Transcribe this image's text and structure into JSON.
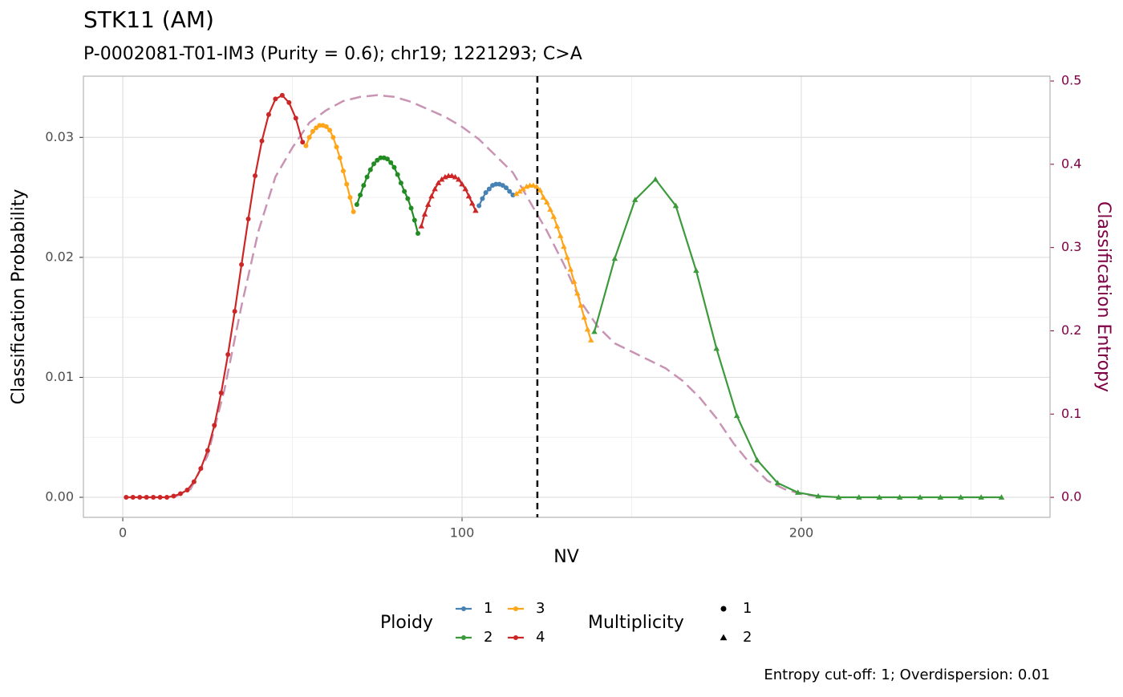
{
  "chart_data": {
    "type": "line",
    "title": "STK11 (AM)",
    "subtitle": "P-0002081-T01-IM3 (Purity = 0.6); chr19; 1221293; C>A",
    "x_label": "NV",
    "y_label": "Classification Probability",
    "y2_label": "Classification Entropy",
    "caption": "Entropy cut-off: 1; Overdispersion: 0.01",
    "xlim": [
      -11.6,
      273.3
    ],
    "ylim": [
      -0.00167,
      0.0351
    ],
    "y2lim": [
      -0.024,
      0.5058
    ],
    "xticks": [
      0,
      100,
      200
    ],
    "yticks": [
      {
        "value": 0,
        "label": "0.00"
      },
      0.01,
      0.02,
      0.03
    ],
    "y2ticks": [
      {
        "value": 0,
        "label": "0.0"
      },
      0.1,
      0.2,
      0.3,
      0.4,
      0.5
    ],
    "xminor": [
      50,
      150,
      250
    ],
    "yminor": [
      0.005,
      0.015,
      0.025
    ],
    "grid": true,
    "cutoff_x": 122.2,
    "series": [
      {
        "color": "#cd2626",
        "shape": "circle",
        "x": [
          1,
          3,
          5,
          7,
          9,
          11,
          13,
          15,
          17,
          19,
          21,
          23,
          25,
          27,
          29,
          31,
          33,
          35,
          37,
          39,
          41,
          43,
          45,
          47,
          49,
          51,
          53
        ],
        "values": [
          0,
          0,
          0,
          0,
          0,
          0,
          0,
          0.0001,
          0.0003,
          0.0006,
          0.0013,
          0.0024,
          0.0039,
          0.006,
          0.0087,
          0.0119,
          0.0155,
          0.0194,
          0.0232,
          0.0268,
          0.0297,
          0.0319,
          0.0332,
          0.0335,
          0.0329,
          0.0316,
          0.0296
        ]
      },
      {
        "color": "#ffa51a",
        "shape": "circle",
        "x": [
          54,
          55,
          56,
          57,
          58,
          59,
          60,
          61,
          62,
          63,
          64,
          65,
          66,
          67,
          68
        ],
        "values": [
          0.0293,
          0.03,
          0.0305,
          0.0308,
          0.031,
          0.031,
          0.0309,
          0.0306,
          0.03,
          0.0292,
          0.0283,
          0.0272,
          0.0261,
          0.025,
          0.0238
        ]
      },
      {
        "color": "#228b22",
        "shape": "circle",
        "x": [
          69,
          70,
          71,
          72,
          73,
          74,
          75,
          76,
          77,
          78,
          79,
          80,
          81,
          82,
          83,
          84,
          85,
          86,
          87
        ],
        "values": [
          0.0244,
          0.0252,
          0.026,
          0.0267,
          0.0273,
          0.0278,
          0.0281,
          0.0283,
          0.0283,
          0.0282,
          0.0279,
          0.0275,
          0.0269,
          0.0262,
          0.0255,
          0.0249,
          0.0241,
          0.0231,
          0.022
        ]
      },
      {
        "color": "#cd2626",
        "shape": "triangle",
        "x": [
          88,
          89,
          90,
          91,
          92,
          93,
          94,
          95,
          96,
          97,
          98,
          99,
          100,
          101,
          102,
          103,
          104
        ],
        "values": [
          0.0226,
          0.0236,
          0.0244,
          0.0251,
          0.0257,
          0.0262,
          0.0265,
          0.0267,
          0.0268,
          0.0268,
          0.0267,
          0.0265,
          0.0261,
          0.0257,
          0.0251,
          0.0245,
          0.0239
        ]
      },
      {
        "color": "#4682b4",
        "shape": "circle",
        "x": [
          105,
          106,
          107,
          108,
          109,
          110,
          111,
          112,
          113,
          114,
          115
        ],
        "values": [
          0.0243,
          0.0249,
          0.0254,
          0.0257,
          0.026,
          0.0261,
          0.0261,
          0.026,
          0.0258,
          0.0255,
          0.0252
        ]
      },
      {
        "color": "#ffa51a",
        "shape": "triangle",
        "x": [
          116,
          117,
          118,
          119,
          120,
          121,
          122,
          123,
          124,
          125,
          126,
          127,
          128,
          129,
          130,
          131,
          132,
          133,
          134,
          135,
          136,
          137,
          138
        ],
        "values": [
          0.0253,
          0.0255,
          0.0257,
          0.0259,
          0.026,
          0.026,
          0.0259,
          0.0256,
          0.025,
          0.0246,
          0.024,
          0.0234,
          0.0226,
          0.0218,
          0.0209,
          0.02,
          0.019,
          0.018,
          0.017,
          0.016,
          0.015,
          0.014,
          0.0131
        ]
      },
      {
        "color": "#3c9a3c",
        "shape": "triangle",
        "x": [
          139,
          145,
          151,
          157,
          163,
          169,
          175,
          181,
          187,
          193,
          199,
          205,
          211,
          217,
          223,
          229,
          235,
          241,
          247,
          253,
          259
        ],
        "values": [
          0.0138,
          0.0199,
          0.0248,
          0.0265,
          0.0243,
          0.0189,
          0.0124,
          0.0068,
          0.0031,
          0.0012,
          0.0004,
          0.0001,
          0,
          0,
          0,
          0,
          0,
          0,
          0,
          0,
          0
        ]
      }
    ],
    "entropy": {
      "color": "#c994b4",
      "axis": "y2",
      "x": [
        15,
        20,
        25,
        30,
        35,
        40,
        45,
        50,
        55,
        60,
        65,
        70,
        75,
        80,
        85,
        90,
        95,
        100,
        105,
        110,
        115,
        120,
        125,
        130,
        135,
        140,
        145,
        150,
        155,
        160,
        165,
        170,
        175,
        180,
        185,
        190,
        195,
        200,
        205
      ],
      "values": [
        0,
        0.01,
        0.05,
        0.13,
        0.23,
        0.32,
        0.385,
        0.42,
        0.45,
        0.465,
        0.476,
        0.481,
        0.483,
        0.481,
        0.475,
        0.466,
        0.457,
        0.445,
        0.43,
        0.41,
        0.39,
        0.355,
        0.32,
        0.28,
        0.235,
        0.205,
        0.185,
        0.175,
        0.165,
        0.155,
        0.14,
        0.12,
        0.095,
        0.065,
        0.04,
        0.02,
        0.01,
        0.004,
        0.001
      ]
    },
    "ploidy_legend": {
      "title": "Ploidy",
      "entries": [
        {
          "label": "1",
          "color": "#4682b4"
        },
        {
          "label": "2",
          "color": "#3c9a3c"
        },
        {
          "label": "3",
          "color": "#ffa51a"
        },
        {
          "label": "4",
          "color": "#cd2626"
        }
      ]
    },
    "multiplicity_legend": {
      "title": "Multiplicity",
      "entries": [
        {
          "label": "1",
          "shape": "circle"
        },
        {
          "label": "2",
          "shape": "triangle"
        }
      ]
    }
  }
}
